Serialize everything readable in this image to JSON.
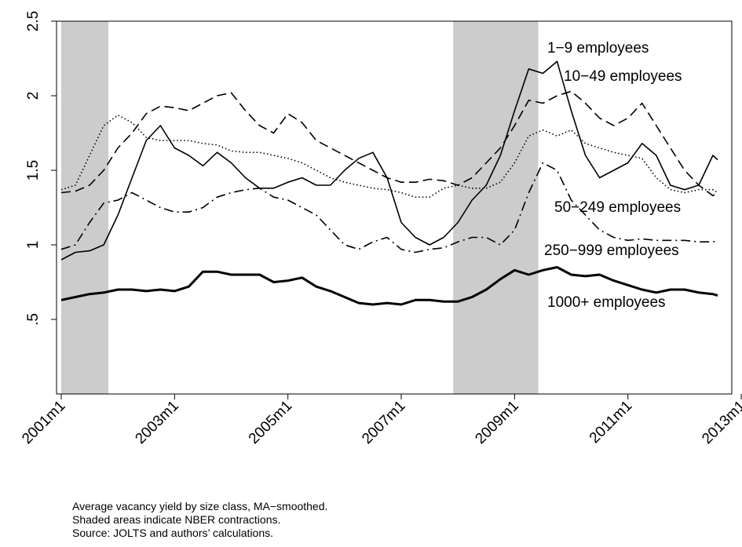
{
  "chart_data": {
    "type": "line",
    "x": [
      "2001m1",
      "2001m4",
      "2001m7",
      "2001m10",
      "2002m1",
      "2002m4",
      "2002m7",
      "2002m10",
      "2003m1",
      "2003m4",
      "2003m7",
      "2003m10",
      "2004m1",
      "2004m4",
      "2004m7",
      "2004m10",
      "2005m1",
      "2005m4",
      "2005m7",
      "2005m10",
      "2006m1",
      "2006m4",
      "2006m7",
      "2006m10",
      "2007m1",
      "2007m4",
      "2007m7",
      "2007m10",
      "2008m1",
      "2008m4",
      "2008m7",
      "2008m10",
      "2009m1",
      "2009m4",
      "2009m7",
      "2009m10",
      "2010m1",
      "2010m4",
      "2010m7",
      "2010m10",
      "2011m1",
      "2011m4",
      "2011m7",
      "2011m10",
      "2012m1",
      "2012m4",
      "2012m7",
      "2012m8"
    ],
    "series": [
      {
        "name": "1−9 employees",
        "color": "#000000",
        "style": "solid",
        "width": 1.6,
        "values": [
          0.9,
          0.95,
          0.96,
          1.0,
          1.2,
          1.45,
          1.7,
          1.8,
          1.65,
          1.6,
          1.53,
          1.62,
          1.55,
          1.45,
          1.38,
          1.38,
          1.42,
          1.45,
          1.4,
          1.4,
          1.5,
          1.58,
          1.62,
          1.45,
          1.15,
          1.05,
          1.0,
          1.05,
          1.15,
          1.3,
          1.4,
          1.6,
          1.9,
          2.18,
          2.15,
          2.23,
          1.9,
          1.6,
          1.45,
          1.5,
          1.55,
          1.68,
          1.6,
          1.4,
          1.37,
          1.4,
          1.6,
          1.57
        ]
      },
      {
        "name": "10−49 employees",
        "color": "#000000",
        "style": "dash",
        "width": 1.6,
        "values": [
          1.35,
          1.36,
          1.4,
          1.5,
          1.65,
          1.75,
          1.88,
          1.93,
          1.92,
          1.9,
          1.95,
          2.0,
          2.02,
          1.9,
          1.8,
          1.75,
          1.88,
          1.82,
          1.7,
          1.65,
          1.6,
          1.55,
          1.5,
          1.45,
          1.42,
          1.42,
          1.44,
          1.43,
          1.4,
          1.45,
          1.55,
          1.65,
          1.8,
          1.97,
          1.95,
          2.0,
          2.03,
          1.95,
          1.85,
          1.8,
          1.85,
          1.95,
          1.8,
          1.65,
          1.5,
          1.4,
          1.33,
          1.35
        ]
      },
      {
        "name": "50−249 employees",
        "color": "#000000",
        "style": "dot",
        "width": 1.6,
        "values": [
          1.37,
          1.4,
          1.6,
          1.8,
          1.87,
          1.82,
          1.72,
          1.7,
          1.7,
          1.7,
          1.68,
          1.67,
          1.63,
          1.62,
          1.62,
          1.6,
          1.58,
          1.55,
          1.5,
          1.45,
          1.42,
          1.4,
          1.38,
          1.37,
          1.35,
          1.32,
          1.32,
          1.38,
          1.4,
          1.38,
          1.38,
          1.42,
          1.55,
          1.73,
          1.77,
          1.73,
          1.77,
          1.68,
          1.65,
          1.62,
          1.6,
          1.58,
          1.45,
          1.37,
          1.35,
          1.37,
          1.37,
          1.35
        ]
      },
      {
        "name": "250−999 employees",
        "color": "#000000",
        "style": "dashdot",
        "width": 1.6,
        "values": [
          0.97,
          1.0,
          1.15,
          1.28,
          1.3,
          1.35,
          1.3,
          1.25,
          1.22,
          1.22,
          1.25,
          1.32,
          1.35,
          1.37,
          1.38,
          1.32,
          1.3,
          1.25,
          1.2,
          1.1,
          1.0,
          0.97,
          1.02,
          1.05,
          0.97,
          0.95,
          0.97,
          0.98,
          1.02,
          1.05,
          1.05,
          1.0,
          1.1,
          1.35,
          1.55,
          1.5,
          1.3,
          1.2,
          1.1,
          1.05,
          1.03,
          1.04,
          1.03,
          1.03,
          1.03,
          1.02,
          1.02,
          1.03
        ]
      },
      {
        "name": "1000+ employees",
        "color": "#000000",
        "style": "solid",
        "width": 3,
        "values": [
          0.63,
          0.65,
          0.67,
          0.68,
          0.7,
          0.7,
          0.69,
          0.7,
          0.69,
          0.72,
          0.82,
          0.82,
          0.8,
          0.8,
          0.8,
          0.75,
          0.76,
          0.78,
          0.72,
          0.69,
          0.65,
          0.61,
          0.6,
          0.61,
          0.6,
          0.63,
          0.63,
          0.62,
          0.62,
          0.65,
          0.7,
          0.77,
          0.83,
          0.8,
          0.83,
          0.85,
          0.8,
          0.79,
          0.8,
          0.76,
          0.73,
          0.7,
          0.68,
          0.7,
          0.7,
          0.68,
          0.67,
          0.66
        ]
      }
    ],
    "shaded": [
      [
        "2001m1",
        "2001m11"
      ],
      [
        "2007m12",
        "2009m6"
      ]
    ],
    "shade_color": "#cccccc",
    "xlim": [
      "2000m12",
      "2012m11"
    ],
    "xticks": [
      "2001m1",
      "2003m1",
      "2005m1",
      "2007m1",
      "2009m1",
      "2011m1",
      "2013m1"
    ],
    "ylim": [
      0,
      2.5
    ],
    "yticks": [
      {
        "value": 0.5,
        "label": ".5"
      },
      1,
      1.5,
      2,
      2.5
    ],
    "notes": [
      "Average vacancy yield by size class, MA−smoothed.",
      "Shaded areas indicate NBER contractions.",
      "Source: JOLTS and authors’ calculations."
    ]
  }
}
